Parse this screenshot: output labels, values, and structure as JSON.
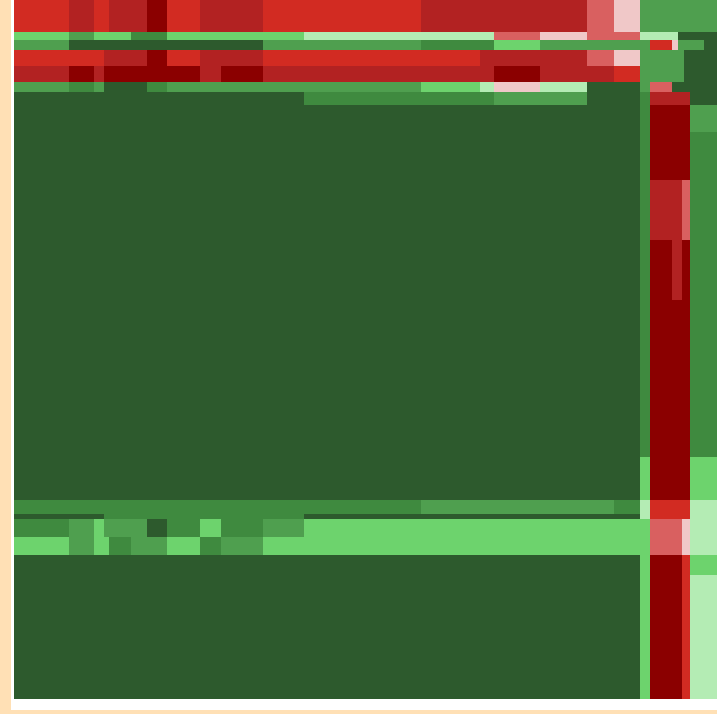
{
  "chart_data": {
    "type": "heatmap",
    "title": "",
    "xlabel": "",
    "ylabel": "",
    "grid": false,
    "legend": "none",
    "colors": {
      "page_background": "#ffe0b5",
      "frame": "#ffffff",
      "dark_green": "#2d5a2d",
      "mid_green": "#3f8a3f",
      "green": "#4f9f4f",
      "light_green": "#6dd36d",
      "pale_green": "#b4ecb4",
      "dark_red": "#8b0000",
      "red": "#b22222",
      "bright_red": "#d22b22",
      "light_red": "#d96060",
      "pink": "#f0c8c8"
    },
    "blocks": [
      {
        "x": [
          0,
          626
        ],
        "y": [
          0,
          699
        ],
        "color": "dark_green"
      },
      {
        "x": [
          0,
          626
        ],
        "y": [
          0,
          32
        ],
        "color": "bright_red"
      },
      {
        "x": [
          55,
          80
        ],
        "y": [
          0,
          32
        ],
        "color": "red"
      },
      {
        "x": [
          95,
          133
        ],
        "y": [
          0,
          32
        ],
        "color": "red"
      },
      {
        "x": [
          133,
          153
        ],
        "y": [
          0,
          32
        ],
        "color": "dark_red"
      },
      {
        "x": [
          186,
          207
        ],
        "y": [
          0,
          32
        ],
        "color": "red"
      },
      {
        "x": [
          207,
          249
        ],
        "y": [
          0,
          32
        ],
        "color": "red"
      },
      {
        "x": [
          407,
          573
        ],
        "y": [
          0,
          32
        ],
        "color": "red"
      },
      {
        "x": [
          573,
          600
        ],
        "y": [
          0,
          32
        ],
        "color": "light_red"
      },
      {
        "x": [
          600,
          626
        ],
        "y": [
          0,
          32
        ],
        "color": "pink"
      },
      {
        "x": [
          0,
          290
        ],
        "y": [
          32,
          40
        ],
        "color": "light_green"
      },
      {
        "x": [
          290,
          407
        ],
        "y": [
          32,
          40
        ],
        "color": "pale_green"
      },
      {
        "x": [
          407,
          480
        ],
        "y": [
          32,
          40
        ],
        "color": "pale_green"
      },
      {
        "x": [
          480,
          626
        ],
        "y": [
          32,
          40
        ],
        "color": "light_red"
      },
      {
        "x": [
          526,
          573
        ],
        "y": [
          32,
          40
        ],
        "color": "pink"
      },
      {
        "x": [
          55,
          80
        ],
        "y": [
          32,
          40
        ],
        "color": "green"
      },
      {
        "x": [
          117,
          153
        ],
        "y": [
          32,
          40
        ],
        "color": "mid_green"
      },
      {
        "x": [
          0,
          626
        ],
        "y": [
          40,
          50
        ],
        "color": "dark_green"
      },
      {
        "x": [
          0,
          55
        ],
        "y": [
          40,
          50
        ],
        "color": "green"
      },
      {
        "x": [
          249,
          407
        ],
        "y": [
          40,
          50
        ],
        "color": "green"
      },
      {
        "x": [
          407,
          480
        ],
        "y": [
          40,
          50
        ],
        "color": "mid_green"
      },
      {
        "x": [
          480,
          526
        ],
        "y": [
          40,
          50
        ],
        "color": "light_green"
      },
      {
        "x": [
          526,
          626
        ],
        "y": [
          40,
          50
        ],
        "color": "green"
      },
      {
        "x": [
          0,
          626
        ],
        "y": [
          50,
          66
        ],
        "color": "bright_red"
      },
      {
        "x": [
          90,
          133
        ],
        "y": [
          50,
          66
        ],
        "color": "red"
      },
      {
        "x": [
          133,
          153
        ],
        "y": [
          50,
          66
        ],
        "color": "dark_red"
      },
      {
        "x": [
          186,
          249
        ],
        "y": [
          50,
          66
        ],
        "color": "red"
      },
      {
        "x": [
          466,
          573
        ],
        "y": [
          50,
          66
        ],
        "color": "red"
      },
      {
        "x": [
          573,
          600
        ],
        "y": [
          50,
          66
        ],
        "color": "light_red"
      },
      {
        "x": [
          600,
          626
        ],
        "y": [
          50,
          66
        ],
        "color": "pink"
      },
      {
        "x": [
          0,
          626
        ],
        "y": [
          66,
          82
        ],
        "color": "red"
      },
      {
        "x": [
          55,
          80
        ],
        "y": [
          66,
          82
        ],
        "color": "dark_red"
      },
      {
        "x": [
          90,
          186
        ],
        "y": [
          66,
          82
        ],
        "color": "dark_red"
      },
      {
        "x": [
          207,
          249
        ],
        "y": [
          66,
          82
        ],
        "color": "dark_red"
      },
      {
        "x": [
          480,
          526
        ],
        "y": [
          66,
          82
        ],
        "color": "dark_red"
      },
      {
        "x": [
          600,
          626
        ],
        "y": [
          66,
          82
        ],
        "color": "bright_red"
      },
      {
        "x": [
          0,
          626
        ],
        "y": [
          82,
          92
        ],
        "color": "green"
      },
      {
        "x": [
          55,
          80
        ],
        "y": [
          82,
          92
        ],
        "color": "mid_green"
      },
      {
        "x": [
          90,
          133
        ],
        "y": [
          82,
          92
        ],
        "color": "dark_green"
      },
      {
        "x": [
          133,
          153
        ],
        "y": [
          82,
          92
        ],
        "color": "mid_green"
      },
      {
        "x": [
          407,
          466
        ],
        "y": [
          82,
          92
        ],
        "color": "light_green"
      },
      {
        "x": [
          466,
          480
        ],
        "y": [
          82,
          92
        ],
        "color": "pale_green"
      },
      {
        "x": [
          480,
          526
        ],
        "y": [
          82,
          92
        ],
        "color": "pink"
      },
      {
        "x": [
          526,
          573
        ],
        "y": [
          82,
          92
        ],
        "color": "pale_green"
      },
      {
        "x": [
          573,
          626
        ],
        "y": [
          82,
          92
        ],
        "color": "dark_green"
      },
      {
        "x": [
          90,
          290
        ],
        "y": [
          92,
          105
        ],
        "color": "dark_green"
      },
      {
        "x": [
          290,
          480
        ],
        "y": [
          92,
          105
        ],
        "color": "mid_green"
      },
      {
        "x": [
          480,
          573
        ],
        "y": [
          92,
          105
        ],
        "color": "green"
      },
      {
        "x": [
          0,
          626
        ],
        "y": [
          500,
          514
        ],
        "color": "mid_green"
      },
      {
        "x": [
          407,
          600
        ],
        "y": [
          500,
          514
        ],
        "color": "green"
      },
      {
        "x": [
          0,
          55
        ],
        "y": [
          514,
          519
        ],
        "color": "dark_green"
      },
      {
        "x": [
          90,
          290
        ],
        "y": [
          514,
          519
        ],
        "color": "mid_green"
      },
      {
        "x": [
          0,
          626
        ],
        "y": [
          519,
          537
        ],
        "color": "light_green"
      },
      {
        "x": [
          0,
          55
        ],
        "y": [
          519,
          537
        ],
        "color": "mid_green"
      },
      {
        "x": [
          55,
          80
        ],
        "y": [
          519,
          537
        ],
        "color": "green"
      },
      {
        "x": [
          90,
          133
        ],
        "y": [
          519,
          537
        ],
        "color": "green"
      },
      {
        "x": [
          133,
          153
        ],
        "y": [
          519,
          537
        ],
        "color": "dark_green"
      },
      {
        "x": [
          153,
          186
        ],
        "y": [
          519,
          537
        ],
        "color": "mid_green"
      },
      {
        "x": [
          207,
          249
        ],
        "y": [
          519,
          537
        ],
        "color": "mid_green"
      },
      {
        "x": [
          249,
          290
        ],
        "y": [
          519,
          537
        ],
        "color": "green"
      },
      {
        "x": [
          0,
          626
        ],
        "y": [
          537,
          555
        ],
        "color": "light_green"
      },
      {
        "x": [
          55,
          80
        ],
        "y": [
          537,
          555
        ],
        "color": "green"
      },
      {
        "x": [
          95,
          117
        ],
        "y": [
          537,
          555
        ],
        "color": "mid_green"
      },
      {
        "x": [
          117,
          153
        ],
        "y": [
          537,
          555
        ],
        "color": "green"
      },
      {
        "x": [
          186,
          207
        ],
        "y": [
          537,
          555
        ],
        "color": "mid_green"
      },
      {
        "x": [
          207,
          249
        ],
        "y": [
          537,
          555
        ],
        "color": "green"
      },
      {
        "x": [
          626,
          703
        ],
        "y": [
          0,
          699
        ],
        "color": "dark_green"
      },
      {
        "x": [
          626,
          703
        ],
        "y": [
          0,
          32
        ],
        "color": "green"
      },
      {
        "x": [
          626,
          664
        ],
        "y": [
          32,
          40
        ],
        "color": "pale_green"
      },
      {
        "x": [
          626,
          690
        ],
        "y": [
          40,
          50
        ],
        "color": "green"
      },
      {
        "x": [
          636,
          658
        ],
        "y": [
          40,
          50
        ],
        "color": "bright_red"
      },
      {
        "x": [
          658,
          664
        ],
        "y": [
          40,
          50
        ],
        "color": "pink"
      },
      {
        "x": [
          626,
          670
        ],
        "y": [
          50,
          82
        ],
        "color": "green"
      },
      {
        "x": [
          626,
          636
        ],
        "y": [
          82,
          92
        ],
        "color": "green"
      },
      {
        "x": [
          636,
          658
        ],
        "y": [
          82,
          92
        ],
        "color": "light_red"
      },
      {
        "x": [
          636,
          676
        ],
        "y": [
          92,
          105
        ],
        "color": "red"
      },
      {
        "x": [
          626,
          636
        ],
        "y": [
          92,
          500
        ],
        "color": "mid_green"
      },
      {
        "x": [
          636,
          668
        ],
        "y": [
          105,
          699
        ],
        "color": "dark_red"
      },
      {
        "x": [
          636,
          668
        ],
        "y": [
          180,
          240
        ],
        "color": "red"
      },
      {
        "x": [
          658,
          676
        ],
        "y": [
          240,
          300
        ],
        "color": "red"
      },
      {
        "x": [
          668,
          676
        ],
        "y": [
          105,
          500
        ],
        "color": "dark_red"
      },
      {
        "x": [
          668,
          676
        ],
        "y": [
          180,
          240
        ],
        "color": "light_red"
      },
      {
        "x": [
          676,
          703
        ],
        "y": [
          105,
          132
        ],
        "color": "green"
      },
      {
        "x": [
          676,
          703
        ],
        "y": [
          132,
          457
        ],
        "color": "mid_green"
      },
      {
        "x": [
          676,
          703
        ],
        "y": [
          457,
          500
        ],
        "color": "light_green"
      },
      {
        "x": [
          626,
          636
        ],
        "y": [
          457,
          699
        ],
        "color": "light_green"
      },
      {
        "x": [
          626,
          636
        ],
        "y": [
          500,
          519
        ],
        "color": "pale_green"
      },
      {
        "x": [
          636,
          676
        ],
        "y": [
          500,
          519
        ],
        "color": "bright_red"
      },
      {
        "x": [
          636,
          668
        ],
        "y": [
          519,
          555
        ],
        "color": "light_red"
      },
      {
        "x": [
          668,
          676
        ],
        "y": [
          519,
          555
        ],
        "color": "pink"
      },
      {
        "x": [
          676,
          703
        ],
        "y": [
          500,
          519
        ],
        "color": "pale_green"
      },
      {
        "x": [
          676,
          703
        ],
        "y": [
          519,
          555
        ],
        "color": "pale_green"
      },
      {
        "x": [
          676,
          703
        ],
        "y": [
          555,
          575
        ],
        "color": "light_green"
      },
      {
        "x": [
          676,
          703
        ],
        "y": [
          575,
          699
        ],
        "color": "pale_green"
      },
      {
        "x": [
          668,
          676
        ],
        "y": [
          555,
          699
        ],
        "color": "bright_red"
      }
    ]
  }
}
